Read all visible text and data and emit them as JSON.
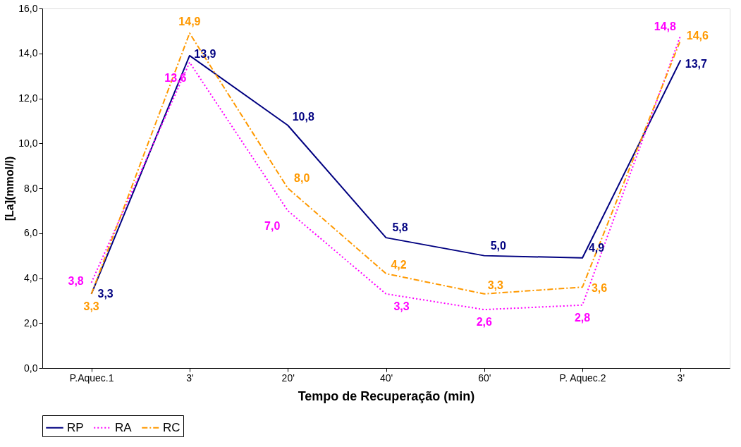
{
  "chart_data": {
    "type": "line",
    "xlabel": "Tempo de Recuperação (min)",
    "ylabel": "[La](mmol/l)",
    "categories": [
      "P.Aquec.1",
      "3'",
      "20'",
      "40'",
      "60'",
      "P. Aquec.2",
      "3'"
    ],
    "ylim": [
      0,
      16
    ],
    "yticks": [
      {
        "value": 0,
        "label": "0,0"
      },
      {
        "value": 2,
        "label": "2,0"
      },
      {
        "value": 4,
        "label": "4,0"
      },
      {
        "value": 6,
        "label": "6,0"
      },
      {
        "value": 8,
        "label": "8,0"
      },
      {
        "value": 10,
        "label": "10,0"
      },
      {
        "value": 12,
        "label": "12,0"
      },
      {
        "value": 14,
        "label": "14,0"
      },
      {
        "value": 16,
        "label": "16,0"
      }
    ],
    "grid": false,
    "legend": "bottom",
    "marker": "none",
    "series": [
      {
        "name": "RP",
        "color": "#000080",
        "line_style": "solid",
        "values": [
          3.3,
          13.9,
          10.8,
          5.8,
          5.0,
          4.9,
          13.7
        ],
        "value_labels": [
          "3,3",
          "13,9",
          "10,8",
          "5,8",
          "5,0",
          "4,9",
          "13,7"
        ]
      },
      {
        "name": "RA",
        "color": "#ff00ff",
        "line_style": "dotted",
        "values": [
          3.8,
          13.6,
          7.0,
          3.3,
          2.6,
          2.8,
          14.8
        ],
        "value_labels": [
          "3,8",
          "13,6",
          "7,0",
          "3,3",
          "2,6",
          "2,8",
          "14,8"
        ]
      },
      {
        "name": "RC",
        "color": "#ff9900",
        "line_style": "dashed",
        "values": [
          3.3,
          14.9,
          8.0,
          4.2,
          3.3,
          3.6,
          14.6
        ],
        "value_labels": [
          "3,3",
          "14,9",
          "8,0",
          "4,2",
          "3,3",
          "3,6",
          "14,6"
        ]
      }
    ]
  }
}
